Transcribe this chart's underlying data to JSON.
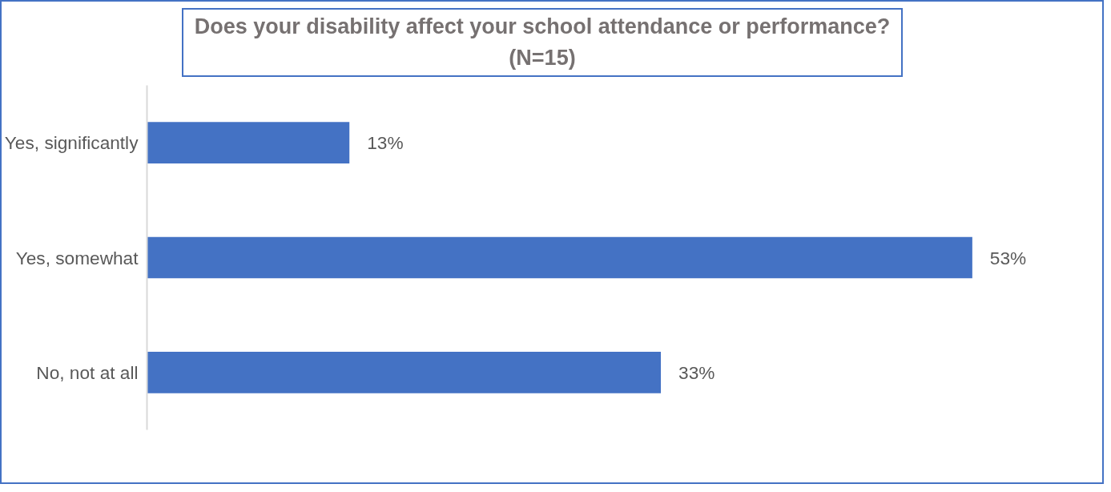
{
  "chart_data": {
    "type": "bar",
    "orientation": "horizontal",
    "title": "Does your disability affect your school attendance or performance?(N=15)",
    "categories": [
      "Yes, significantly",
      "Yes, somewhat",
      "No, not at all"
    ],
    "values": [
      13,
      53,
      33
    ],
    "value_labels": [
      "13%",
      "53%",
      "33%"
    ],
    "color": "#4472c4",
    "grid": false
  }
}
